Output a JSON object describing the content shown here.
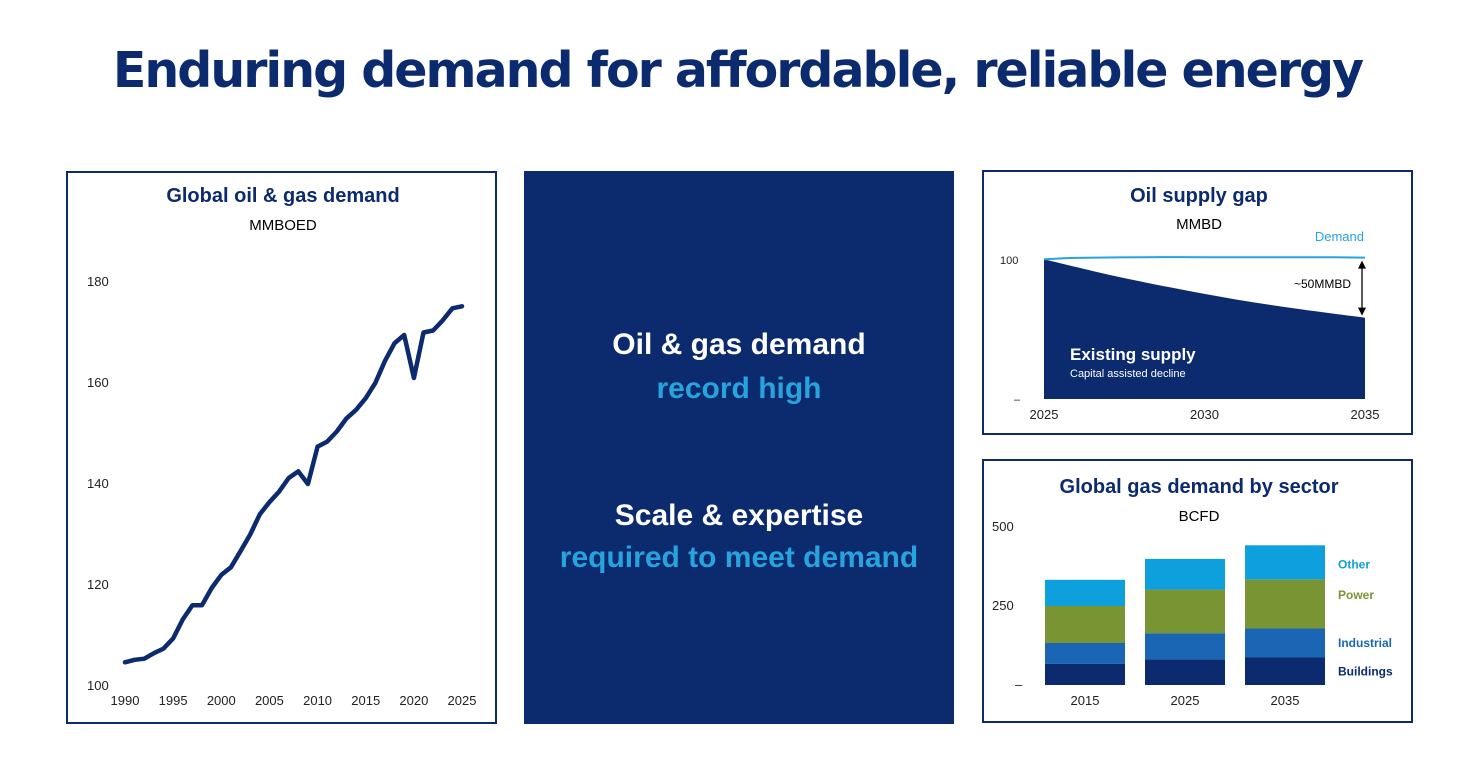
{
  "headline": "Enduring demand for affordable, reliable energy",
  "center": {
    "line1": "Oil & gas demand",
    "line2": "record high",
    "line3": "Scale & expertise",
    "line4": "required to meet demand"
  },
  "colors": {
    "navy": "#0c2a6e",
    "light_blue": "#27a4dd",
    "other": "#0ea0dc",
    "power": "#789433",
    "industrial": "#1a66b5",
    "buildings": "#0c2a6e",
    "demand_line": "#27a4dd"
  },
  "chart_data": [
    {
      "type": "line",
      "title": "Global oil & gas demand",
      "subtitle": "MMBOED",
      "xlim": [
        1990,
        2025
      ],
      "ylim": [
        100,
        180
      ],
      "xticks": [
        "1990",
        "1995",
        "2000",
        "2005",
        "2010",
        "2015",
        "2020",
        "2025"
      ],
      "yticks": [
        "100",
        "120",
        "140",
        "160",
        "180"
      ],
      "x": [
        1990,
        1991,
        1992,
        1993,
        1994,
        1995,
        1996,
        1997,
        1998,
        1999,
        2000,
        2001,
        2002,
        2003,
        2004,
        2005,
        2006,
        2007,
        2008,
        2009,
        2010,
        2011,
        2012,
        2013,
        2014,
        2015,
        2016,
        2017,
        2018,
        2019,
        2020,
        2021,
        2022,
        2023,
        2024,
        2025
      ],
      "y": [
        104.5,
        105,
        105.2,
        106.3,
        107.2,
        109.2,
        113,
        115.8,
        115.8,
        119.2,
        121.8,
        123.3,
        126.5,
        129.8,
        133.8,
        136.2,
        138.3,
        141,
        142.3,
        139.8,
        147.2,
        148.2,
        150.2,
        152.8,
        154.5,
        156.8,
        159.8,
        164.2,
        167.7,
        169.3,
        160.8,
        169.8,
        170.2,
        172.2,
        174.6,
        175
      ]
    },
    {
      "type": "area",
      "title": "Oil supply gap",
      "subtitle": "MMBD",
      "xlim": [
        2025,
        2035
      ],
      "xticks": [
        "2025",
        "2030",
        "2035"
      ],
      "yticks": [
        "100",
        "–"
      ],
      "ylim": [
        0,
        110
      ],
      "series": [
        {
          "name": "Demand",
          "x": [
            2025,
            2026,
            2028,
            2030,
            2032,
            2034,
            2035
          ],
          "values": [
            100.5,
            101.5,
            102,
            102,
            102,
            102,
            101.7
          ]
        },
        {
          "name": "Existing supply",
          "x": [
            2025,
            2027,
            2029,
            2031,
            2033,
            2035
          ],
          "values": [
            100.5,
            89.5,
            80,
            71.5,
            64.5,
            58.5
          ]
        }
      ],
      "annotations": {
        "gap": "~50MMBD",
        "area_label": "Existing supply",
        "area_sublabel": "Capital assisted decline"
      }
    },
    {
      "type": "bar",
      "stacked": true,
      "title": "Global gas demand by sector",
      "subtitle": "BCFD",
      "categories": [
        "2015",
        "2025",
        "2035"
      ],
      "yticks": [
        "500",
        "250",
        "–"
      ],
      "ylim": [
        0,
        500
      ],
      "series": [
        {
          "name": "Buildings",
          "values": [
            67,
            81,
            87
          ]
        },
        {
          "name": "Industrial",
          "values": [
            66,
            83,
            92
          ]
        },
        {
          "name": "Power",
          "values": [
            117,
            138,
            155
          ]
        },
        {
          "name": "Other",
          "values": [
            83,
            97,
            108
          ]
        }
      ]
    }
  ]
}
